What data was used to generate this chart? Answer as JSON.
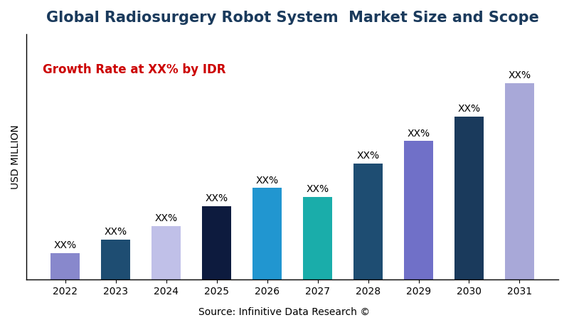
{
  "title": "Global Radiosurgery Robot System  Market Size and Scope",
  "ylabel": "USD MILLION",
  "xlabel_source": "Source: Infinitive Data Research ©",
  "annotation_text": "Growth Rate at XX% by IDR",
  "categories": [
    "2022",
    "2023",
    "2024",
    "2025",
    "2026",
    "2027",
    "2028",
    "2029",
    "2030",
    "2031"
  ],
  "values": [
    12,
    18,
    24,
    33,
    41,
    37,
    52,
    62,
    73,
    88
  ],
  "bar_colors": [
    "#8888cc",
    "#1e4d72",
    "#c0c0e8",
    "#0d1b3e",
    "#2196d0",
    "#1aadaa",
    "#1e4d72",
    "#7070c8",
    "#1a3a5c",
    "#a8a8d8"
  ],
  "bar_labels": [
    "XX%",
    "XX%",
    "XX%",
    "XX%",
    "XX%",
    "XX%",
    "XX%",
    "XX%",
    "XX%",
    "XX%"
  ],
  "title_fontsize": 15,
  "title_color": "#1a3a5c",
  "annotation_color": "#cc0000",
  "annotation_fontsize": 12,
  "label_fontsize": 10,
  "axis_label_fontsize": 10,
  "source_fontsize": 10,
  "background_color": "#ffffff",
  "ylim": [
    0,
    110
  ]
}
